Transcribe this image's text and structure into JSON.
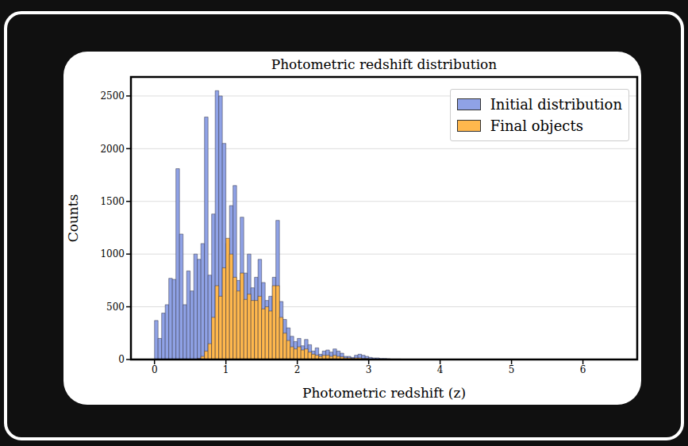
{
  "chart_data": {
    "type": "histogram",
    "title": "Photometric redshift distribution",
    "x_label": "Photometric redshift (z)",
    "y_label": "Counts",
    "bins": [
      0,
      0.05,
      0.1,
      0.15,
      0.2,
      0.25,
      0.3,
      0.35,
      0.4,
      0.45,
      0.5,
      0.55,
      0.6,
      0.65,
      0.7,
      0.75,
      0.8,
      0.85,
      0.9,
      0.95,
      1,
      1.05,
      1.1,
      1.15,
      1.2,
      1.25,
      1.3,
      1.35,
      1.4,
      1.45,
      1.5,
      1.55,
      1.6,
      1.65,
      1.7,
      1.75,
      1.8,
      1.85,
      1.9,
      1.95,
      2,
      2.05,
      2.1,
      2.15,
      2.2,
      2.25,
      2.3,
      2.35,
      2.4,
      2.45,
      2.5,
      2.55,
      2.6,
      2.65,
      2.7,
      2.75,
      2.8,
      2.85,
      2.9,
      2.95,
      3,
      3.05,
      3.1,
      3.15,
      3.2,
      3.25,
      3.3,
      3.35,
      3.4,
      3.45,
      3.5
    ],
    "series": [
      {
        "name": "Initial distribution",
        "color": "#8fa2e6",
        "values": [
          370,
          200,
          440,
          520,
          770,
          760,
          1810,
          1190,
          520,
          840,
          650,
          1000,
          950,
          1100,
          2300,
          800,
          1380,
          2550,
          2500,
          2050,
          1100,
          1460,
          1650,
          750,
          1350,
          820,
          1000,
          680,
          780,
          950,
          730,
          560,
          600,
          780,
          1320,
          550,
          380,
          300,
          220,
          170,
          200,
          130,
          190,
          140,
          80,
          110,
          50,
          80,
          90,
          70,
          100,
          80,
          60,
          30,
          30,
          20,
          40,
          50,
          40,
          30,
          20,
          15,
          15,
          10,
          10,
          8,
          5,
          5,
          5,
          3
        ]
      },
      {
        "name": "Final objects",
        "color": "#ffb84d",
        "values": [
          0,
          0,
          0,
          0,
          0,
          0,
          0,
          0,
          0,
          0,
          0,
          0,
          10,
          30,
          80,
          150,
          400,
          700,
          600,
          870,
          1150,
          1000,
          780,
          650,
          820,
          570,
          620,
          560,
          560,
          600,
          480,
          500,
          460,
          700,
          700,
          400,
          250,
          180,
          120,
          100,
          120,
          90,
          100,
          70,
          50,
          40,
          30,
          40,
          40,
          30,
          40,
          30,
          25,
          15,
          15,
          10,
          15,
          15,
          10,
          10,
          5,
          3,
          3,
          2,
          2,
          1,
          1,
          1,
          1,
          1
        ]
      }
    ],
    "xlim": [
      -0.33,
      6.76
    ],
    "xticks": [
      0,
      1,
      2,
      3,
      4,
      5,
      6
    ],
    "ylim": [
      0,
      2680
    ],
    "yticks": [
      0,
      500,
      1000,
      1500,
      2000,
      2500
    ],
    "grid": true,
    "legend": "upper right"
  }
}
